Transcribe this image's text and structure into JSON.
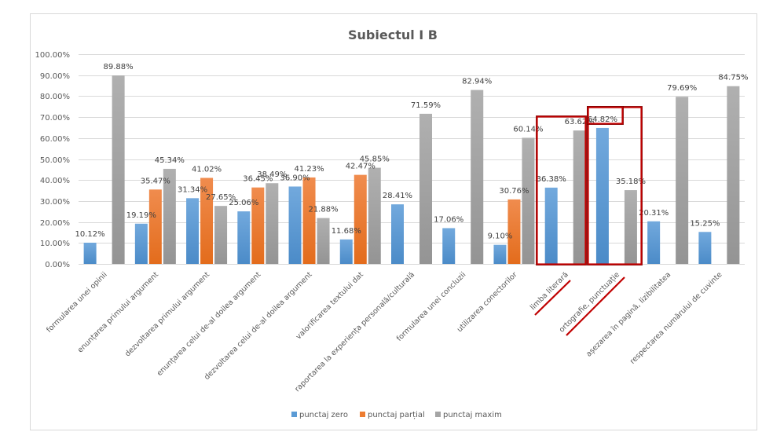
{
  "chart_data": {
    "type": "bar",
    "title": "Subiectul I B",
    "xlabel": "",
    "ylabel": "",
    "ylim": [
      0,
      100
    ],
    "yticks": [
      "0.00%",
      "10.00%",
      "20.00%",
      "30.00%",
      "40.00%",
      "50.00%",
      "60.00%",
      "70.00%",
      "80.00%",
      "90.00%",
      "100.00%"
    ],
    "grid": true,
    "legend_position": "bottom",
    "categories": [
      "formularea unei opinii",
      "enunțarea primului argument",
      "dezvoltarea primului argument",
      "enunțarea celui de-al doilea argument",
      "dezvoltarea celui de-al doilea argument",
      "valorificarea textului dat",
      "raportarea la experiența personală/culturală",
      "formularea unei concluzii",
      "utilizarea conectorilor",
      "limba literară",
      "ortografie, punctuație",
      "așezarea în pagină, lizibilitatea",
      "respectarea numărului de cuvinte"
    ],
    "series": [
      {
        "name": "punctaj zero",
        "color": "#5b9bd5",
        "values": [
          10.12,
          19.19,
          31.34,
          25.06,
          36.9,
          11.68,
          28.41,
          17.06,
          9.1,
          36.38,
          64.82,
          20.31,
          15.25
        ],
        "labels": [
          "10.12%",
          "19.19%",
          "31.34%",
          "25.06%",
          "36.90%",
          "11.68%",
          "28.41%",
          "17.06%",
          "9.10%",
          "36.38%",
          "64.82%",
          "20.31%",
          "15.25%"
        ]
      },
      {
        "name": "punctaj parțial",
        "color": "#ed7d31",
        "values": [
          null,
          35.47,
          41.02,
          36.45,
          41.23,
          42.47,
          null,
          null,
          30.76,
          null,
          null,
          null,
          null
        ],
        "labels": [
          null,
          "35.47%",
          "41.02%",
          "36.45%",
          "41.23%",
          "42.47%",
          null,
          null,
          "30.76%",
          null,
          null,
          null,
          null
        ]
      },
      {
        "name": "punctaj maxim",
        "color": "#a5a5a5",
        "values": [
          89.88,
          45.34,
          27.65,
          38.49,
          21.88,
          45.85,
          71.59,
          82.94,
          60.14,
          63.62,
          35.18,
          79.69,
          84.75
        ],
        "labels": [
          "89.88%",
          "45.34%",
          "27.65%",
          "38.49%",
          "21.88%",
          "45.85%",
          "71.59%",
          "82.94%",
          "60.14%",
          "63.62%",
          "35.18%",
          "79.69%",
          "84.75%"
        ]
      }
    ],
    "annotations": {
      "highlighted_categories": [
        "limba literară",
        "ortografie, punctuație"
      ],
      "highlight_color": "#c00000"
    }
  }
}
